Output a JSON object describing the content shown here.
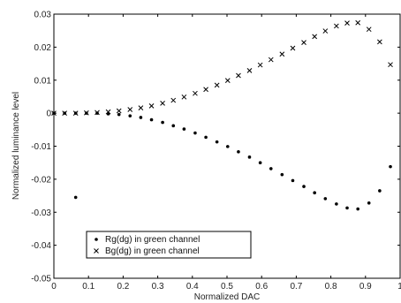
{
  "chart_data": {
    "type": "scatter",
    "xlabel": "Normalized DAC",
    "ylabel": "Normalized luminance level",
    "xlim": [
      0,
      1
    ],
    "ylim": [
      -0.05,
      0.03
    ],
    "x_ticks": [
      "0",
      "0.1",
      "0.2",
      "0.3",
      "0.4",
      "0.5",
      "0.6",
      "0.7",
      "0.8",
      "0.9",
      "1"
    ],
    "y_ticks": [
      "0.03",
      "0.02",
      "0.01",
      "0",
      "-0.01",
      "-0.02",
      "-0.03",
      "-0.04",
      "-0.05"
    ],
    "grid": false,
    "legend_position": "lower-left",
    "series": [
      {
        "name": "Rg(dg) in green channel",
        "marker": "dot",
        "x": [
          0,
          0.031,
          0.063,
          0.094,
          0.125,
          0.157,
          0.188,
          0.22,
          0.251,
          0.282,
          0.314,
          0.345,
          0.376,
          0.408,
          0.439,
          0.471,
          0.502,
          0.533,
          0.565,
          0.596,
          0.627,
          0.659,
          0.69,
          0.722,
          0.753,
          0.784,
          0.816,
          0.847,
          0.878,
          0.91,
          0.941,
          0.972
        ],
        "y": [
          0,
          0,
          0,
          0,
          0,
          -0.0002,
          -0.0004,
          -0.0008,
          -0.0013,
          -0.002,
          -0.0028,
          -0.0038,
          -0.0048,
          -0.006,
          -0.0073,
          -0.0087,
          -0.0101,
          -0.0117,
          -0.0133,
          -0.015,
          -0.0168,
          -0.0186,
          -0.0204,
          -0.0222,
          -0.0241,
          -0.0259,
          -0.0275,
          -0.0287,
          -0.029,
          -0.0272,
          -0.0235,
          -0.0162
        ]
      },
      {
        "name": "Bg(dg) in green channel",
        "marker": "x",
        "x": [
          0,
          0.031,
          0.063,
          0.094,
          0.125,
          0.157,
          0.188,
          0.22,
          0.251,
          0.282,
          0.314,
          0.345,
          0.376,
          0.408,
          0.439,
          0.471,
          0.502,
          0.533,
          0.565,
          0.596,
          0.627,
          0.659,
          0.69,
          0.722,
          0.753,
          0.784,
          0.816,
          0.847,
          0.878,
          0.91,
          0.941,
          0.972
        ],
        "y": [
          0,
          0,
          0,
          0.0001,
          0.0002,
          0.0004,
          0.0007,
          0.0011,
          0.0016,
          0.0022,
          0.003,
          0.0039,
          0.0049,
          0.006,
          0.0072,
          0.0085,
          0.0099,
          0.0114,
          0.0129,
          0.0146,
          0.0162,
          0.0179,
          0.0197,
          0.0214,
          0.0232,
          0.0249,
          0.0264,
          0.0273,
          0.0274,
          0.0254,
          0.0216,
          0.0147
        ]
      },
      {
        "name": "",
        "marker": "dot",
        "x": [
          0.063
        ],
        "y": [
          -0.0255
        ]
      }
    ]
  }
}
